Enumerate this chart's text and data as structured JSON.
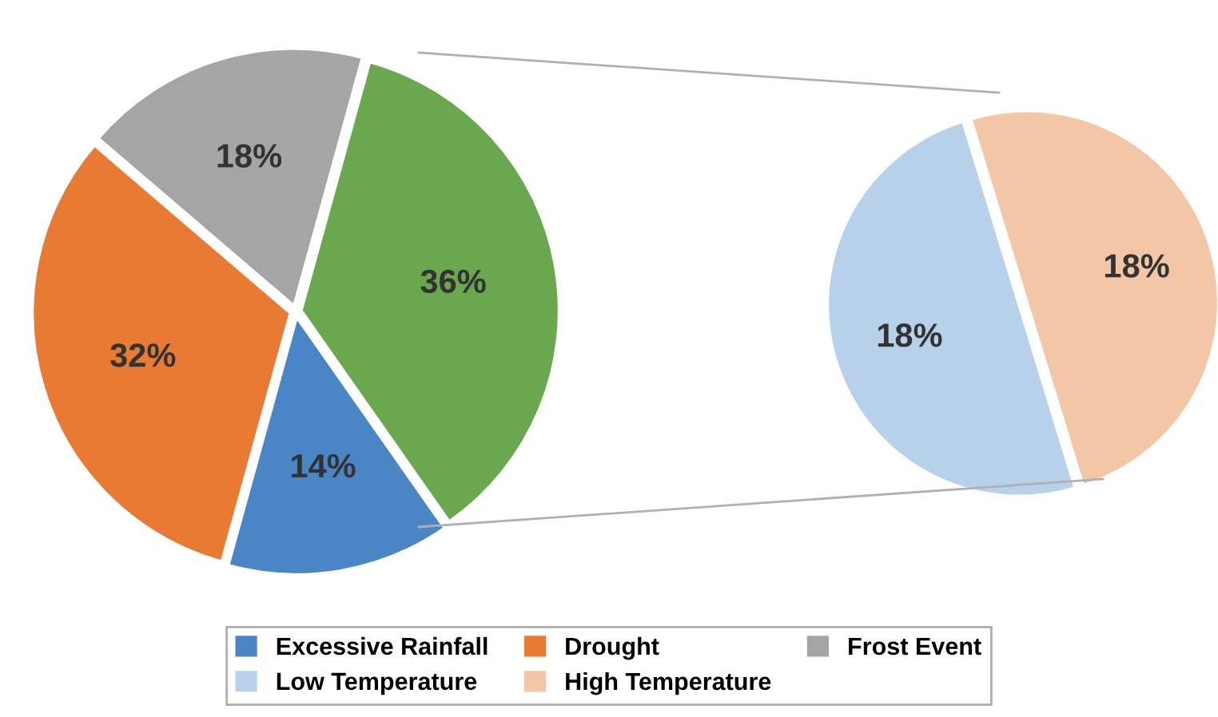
{
  "chart_data": [
    {
      "type": "pie",
      "categories": [
        "Excessive Rainfall",
        "Drought",
        "Frost Event",
        null
      ],
      "values": [
        14,
        32,
        18,
        36
      ],
      "colors": [
        "#4a86c5",
        "#e87a34",
        "#a5a5a5",
        "#6aa84f"
      ],
      "value_labels": [
        "14%",
        "32%",
        "18%",
        "36%"
      ],
      "legend": "bottom"
    },
    {
      "type": "pie",
      "categories": [
        "Low Temperature",
        "High Temperature"
      ],
      "values": [
        18,
        18
      ],
      "colors": [
        "#b8d1ea",
        "#f2c6a6"
      ],
      "value_labels": [
        "18%",
        "18%"
      ],
      "legend": "bottom"
    }
  ]
}
